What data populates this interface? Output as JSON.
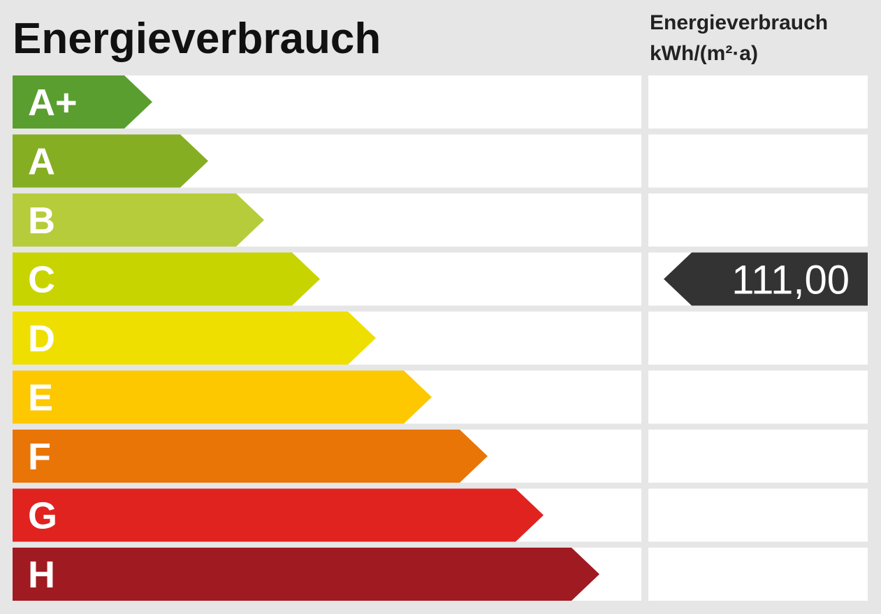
{
  "header": {
    "title": "Energieverbrauch",
    "column_title": "Energieverbrauch",
    "column_unit": "kWh/(m²·a)"
  },
  "classes": [
    {
      "label": "A+",
      "color": "#5a9e2f"
    },
    {
      "label": "A",
      "color": "#85ae22"
    },
    {
      "label": "B",
      "color": "#b6cc3a"
    },
    {
      "label": "C",
      "color": "#c8d400",
      "value": "111,00"
    },
    {
      "label": "D",
      "color": "#eedf00"
    },
    {
      "label": "E",
      "color": "#fdc800"
    },
    {
      "label": "F",
      "color": "#e97507"
    },
    {
      "label": "G",
      "color": "#e12320"
    },
    {
      "label": "H",
      "color": "#a01a21"
    }
  ]
}
